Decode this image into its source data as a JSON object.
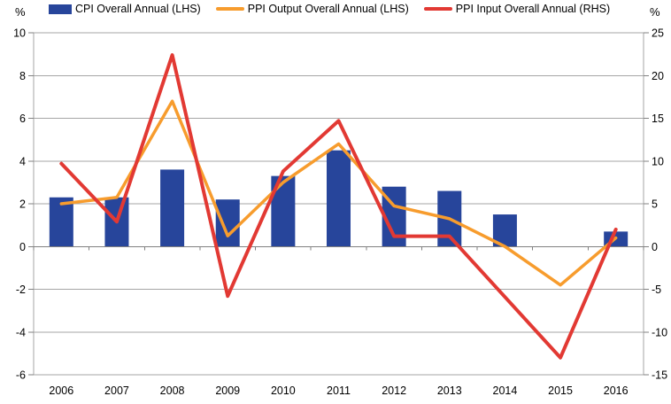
{
  "chart_data": {
    "type": "combo",
    "title": "",
    "categories": [
      "2006",
      "2007",
      "2008",
      "2009",
      "2010",
      "2011",
      "2012",
      "2013",
      "2014",
      "2015",
      "2016"
    ],
    "series": [
      {
        "name": "CPI Overall Annual (LHS)",
        "type": "bar",
        "axis": "left",
        "color": "#27459B",
        "values": [
          2.3,
          2.3,
          3.6,
          2.2,
          3.3,
          4.5,
          2.8,
          2.6,
          1.5,
          0.0,
          0.7
        ]
      },
      {
        "name": "PPI Output Overall Annual (LHS)",
        "type": "line",
        "axis": "left",
        "color": "#F79C2D",
        "values": [
          2.0,
          2.3,
          6.8,
          0.5,
          3.0,
          4.8,
          1.9,
          1.3,
          0.0,
          -1.8,
          0.4
        ]
      },
      {
        "name": "PPI Input Overall Annual (RHS)",
        "type": "line",
        "axis": "right",
        "color": "#E23933",
        "values": [
          9.7,
          2.9,
          22.4,
          -5.8,
          8.8,
          14.7,
          1.2,
          1.2,
          -5.9,
          -13.0,
          2.0
        ]
      }
    ],
    "left_axis": {
      "unit": "%",
      "min": -6,
      "max": 10,
      "step": 2,
      "ticks": [
        10,
        8,
        6,
        4,
        2,
        0,
        -2,
        -4,
        -6
      ]
    },
    "right_axis": {
      "unit": "%",
      "min": -15,
      "max": 25,
      "step": 5,
      "ticks": [
        25,
        20,
        15,
        10,
        5,
        0,
        -5,
        -10,
        -15
      ]
    },
    "grid": true,
    "legend_position": "top"
  },
  "colors": {
    "background": "#FFFFFF",
    "grid": "#A6A6A6",
    "axis": "#808080",
    "text": "#000000"
  }
}
